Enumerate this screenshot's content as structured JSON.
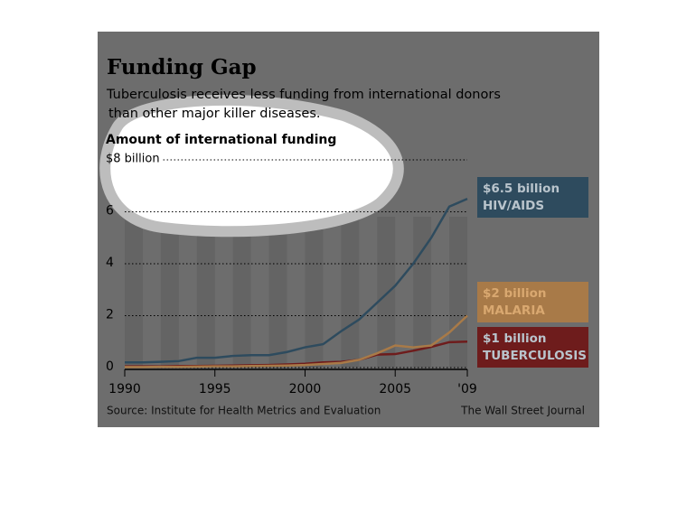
{
  "chart_data": {
    "type": "line",
    "title": "Funding Gap",
    "subtitle": [
      "Tuberculosis receives less funding from international donors",
      "than other major killer diseases."
    ],
    "y_label": "Amount of international funding",
    "x": [
      1990,
      1991,
      1992,
      1993,
      1994,
      1995,
      1996,
      1997,
      1998,
      1999,
      2000,
      2001,
      2002,
      2003,
      2004,
      2005,
      2006,
      2007,
      2008,
      2009
    ],
    "series": [
      {
        "name": "HIV/AIDS",
        "end_label": "$6.5 billion",
        "color": "#2e4b5e",
        "values": [
          0.2,
          0.2,
          0.22,
          0.25,
          0.38,
          0.38,
          0.45,
          0.48,
          0.48,
          0.6,
          0.78,
          0.9,
          1.4,
          1.85,
          2.5,
          3.15,
          4.0,
          5.0,
          6.2,
          6.5
        ]
      },
      {
        "name": "MALARIA",
        "end_label": "$2 billion",
        "color": "#a87a48",
        "values": [
          0.02,
          0.02,
          0.03,
          0.03,
          0.04,
          0.05,
          0.05,
          0.06,
          0.07,
          0.08,
          0.1,
          0.14,
          0.18,
          0.3,
          0.55,
          0.85,
          0.78,
          0.85,
          1.35,
          2.0
        ]
      },
      {
        "name": "TUBERCULOSIS",
        "end_label": "$1 billion",
        "color": "#6e1c1c",
        "values": [
          0.05,
          0.05,
          0.05,
          0.06,
          0.06,
          0.07,
          0.08,
          0.09,
          0.1,
          0.12,
          0.15,
          0.2,
          0.22,
          0.3,
          0.5,
          0.52,
          0.65,
          0.8,
          0.98,
          1.0
        ]
      }
    ],
    "xlim": [
      1990,
      2009
    ],
    "xticks": [
      1990,
      1995,
      2000,
      2005,
      {
        "value": 2009,
        "label": "'09"
      }
    ],
    "ylim": [
      0,
      8
    ],
    "yticks": [
      0,
      2,
      4,
      6,
      {
        "value": 8,
        "label": "$8 billion"
      }
    ],
    "grid": true,
    "source": "Source: Institute for Health Metrics and Evaluation",
    "credit": "The Wall Street Journal"
  }
}
